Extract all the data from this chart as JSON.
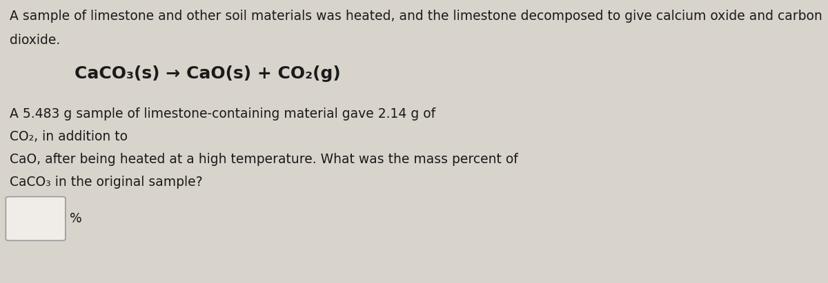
{
  "background_color": "#d8d4cc",
  "content_bg": "#e8e4dc",
  "line1": "A sample of limestone and other soil materials was heated, and the limestone decomposed to give calcium oxide and carbon",
  "line2": "dioxide.",
  "equation": "CaCO₃(s) → CaO(s) + CO₂(g)",
  "para1_line1": "A 5.483 g sample of limestone-containing material gave 2.14 g of",
  "para1_line2": "CO₂, in addition to",
  "para1_line3": "CaO, after being heated at a high temperature. What was the mass percent of",
  "para1_line4": "CaCO₃ in the original sample?",
  "percent_label": "%",
  "font_size_main": 13.5,
  "font_size_eq": 18,
  "text_color": "#1a1a1a",
  "box_color": "#f0ede8",
  "box_edge_color": "#999999"
}
